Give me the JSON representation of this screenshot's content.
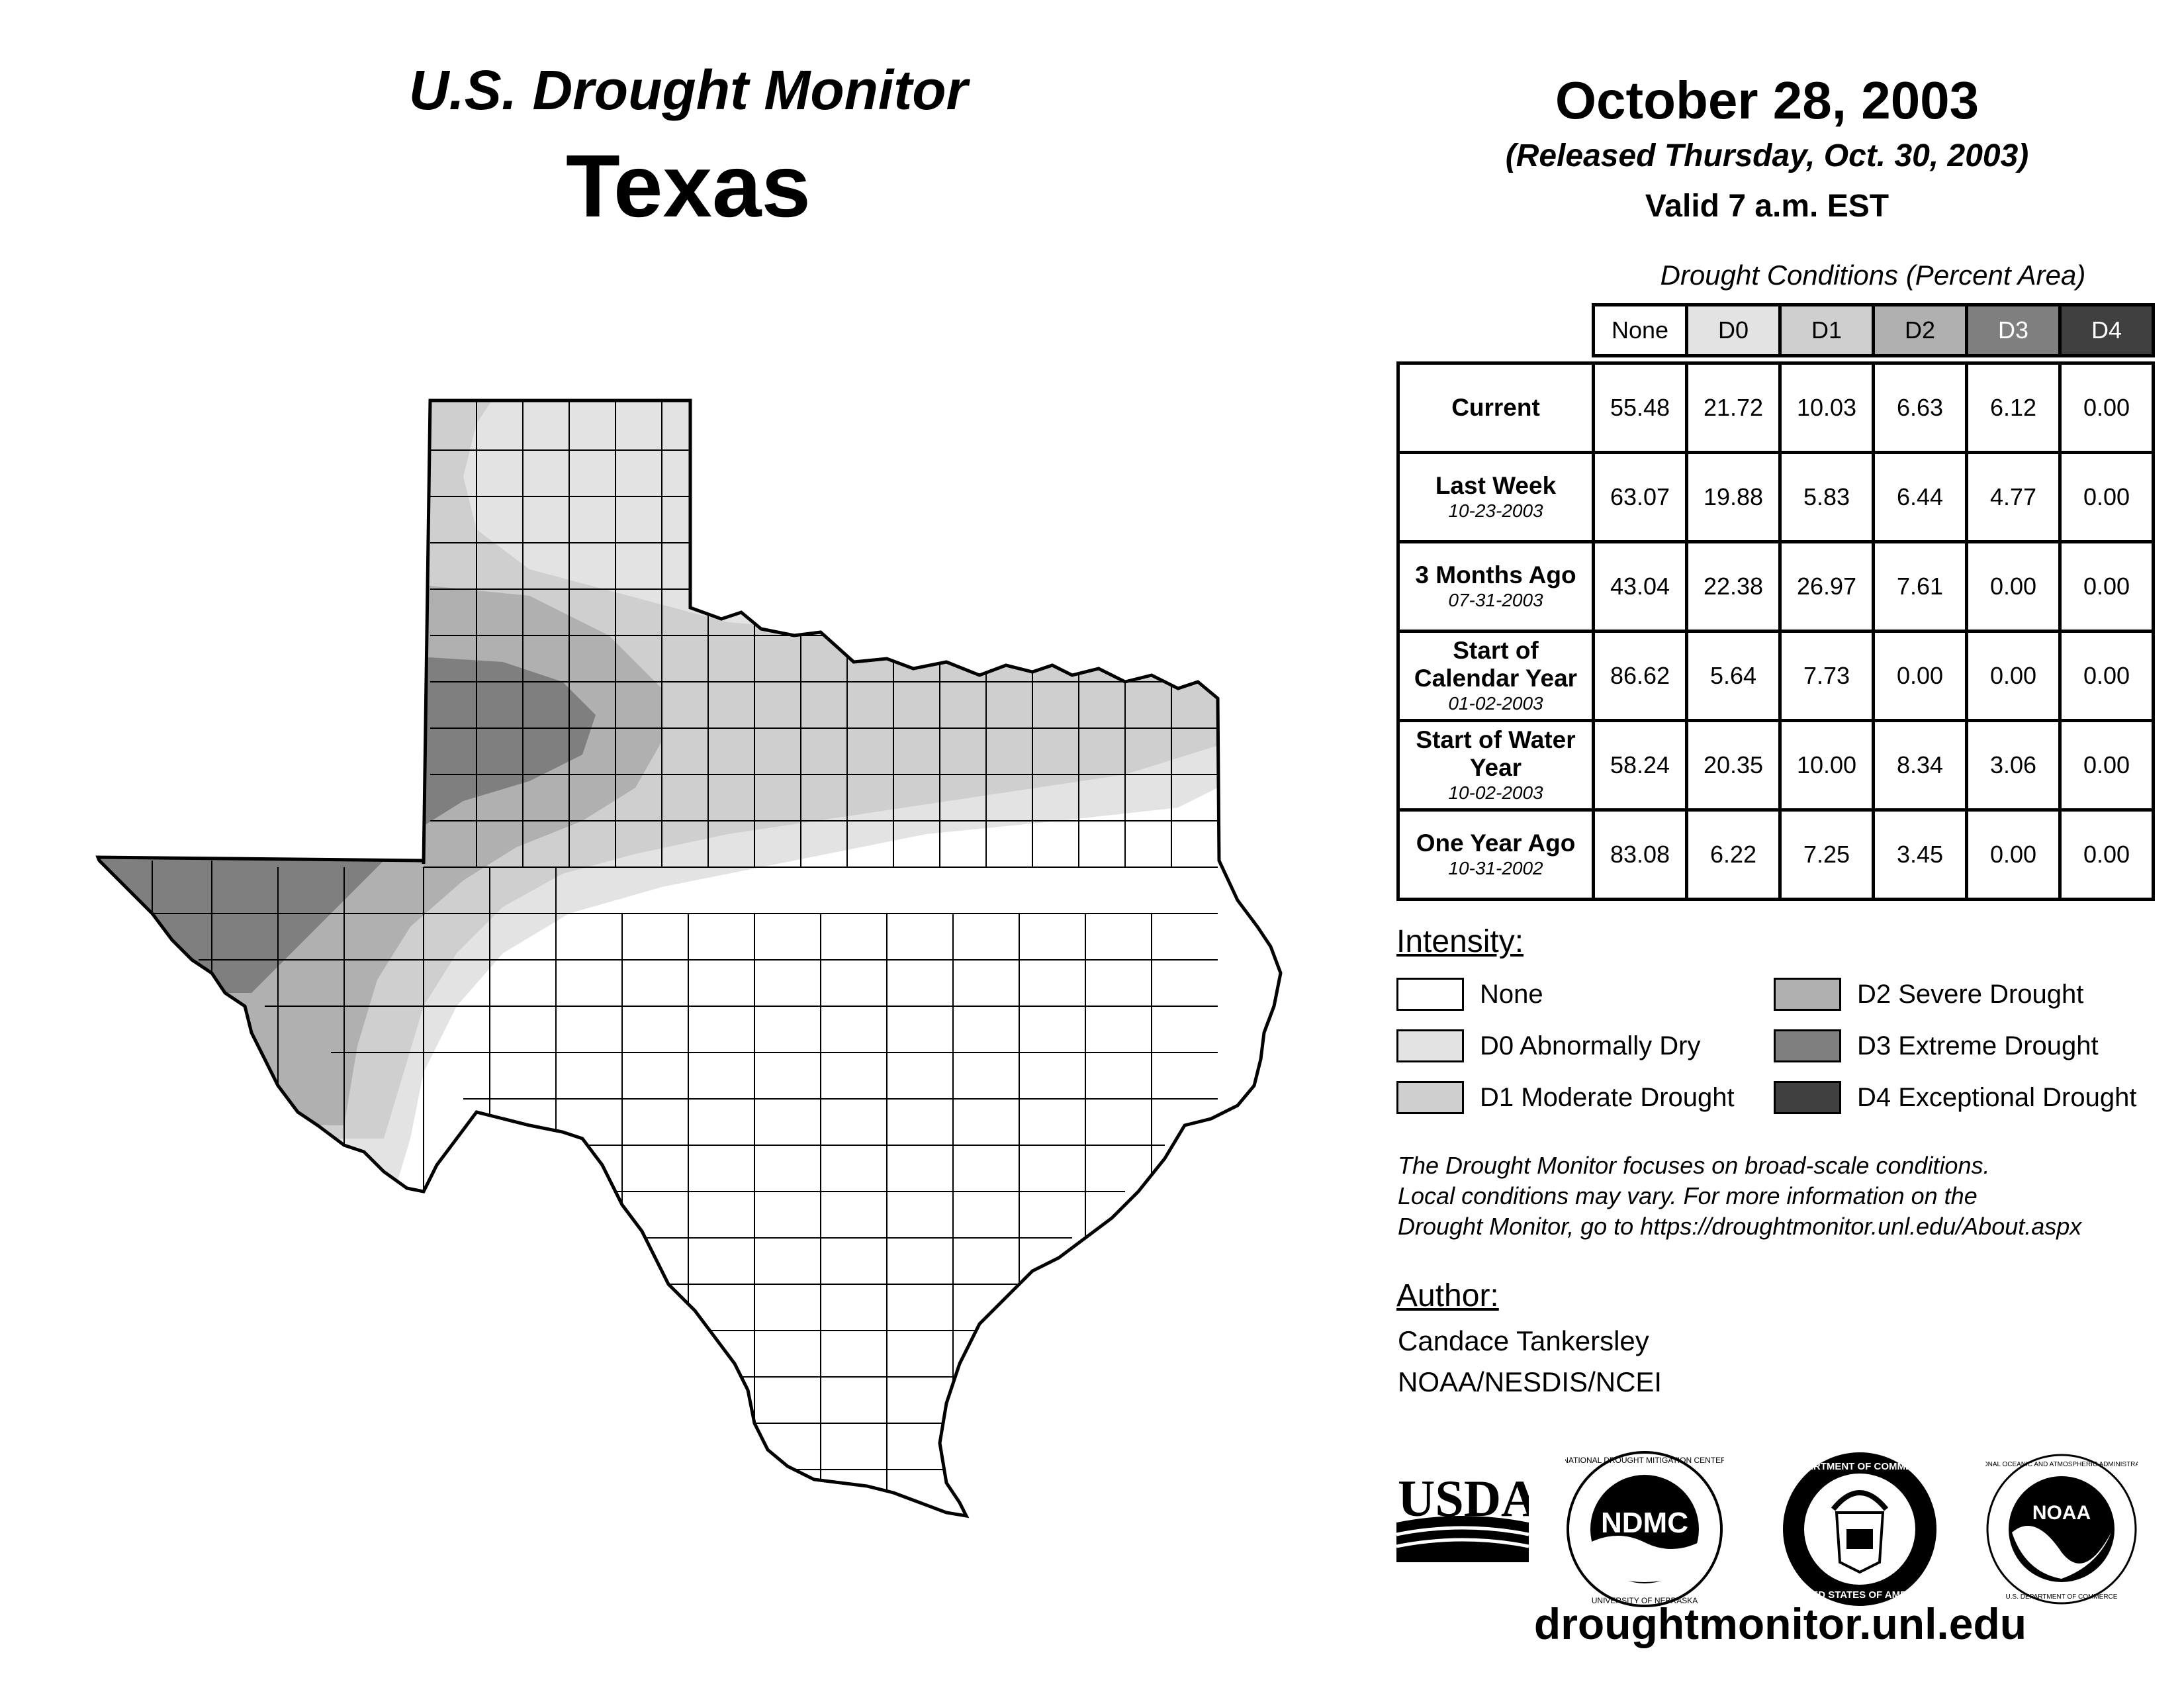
{
  "header": {
    "monitor_title": "U.S. Drought Monitor",
    "state_title": "Texas",
    "date": "October 28, 2003",
    "released": "(Released Thursday, Oct. 30, 2003)",
    "valid": "Valid 7 a.m. EST"
  },
  "table": {
    "caption": "Drought Conditions (Percent Area)",
    "columns": [
      "None",
      "D0",
      "D1",
      "D2",
      "D3",
      "D4"
    ],
    "column_colors": [
      "#ffffff",
      "#e3e3e3",
      "#cfcfcf",
      "#b0b0b0",
      "#7f7f7f",
      "#404040"
    ],
    "rows": [
      {
        "label": "Current",
        "date": "",
        "values": [
          "55.48",
          "21.72",
          "10.03",
          "6.63",
          "6.12",
          "0.00"
        ]
      },
      {
        "label": "Last Week",
        "date": "10-23-2003",
        "values": [
          "63.07",
          "19.88",
          "5.83",
          "6.44",
          "4.77",
          "0.00"
        ]
      },
      {
        "label": "3 Months Ago",
        "date": "07-31-2003",
        "values": [
          "43.04",
          "22.38",
          "26.97",
          "7.61",
          "0.00",
          "0.00"
        ]
      },
      {
        "label": "Start of Calendar Year",
        "date": "01-02-2003",
        "values": [
          "86.62",
          "5.64",
          "7.73",
          "0.00",
          "0.00",
          "0.00"
        ]
      },
      {
        "label": "Start of Water Year",
        "date": "10-02-2003",
        "values": [
          "58.24",
          "20.35",
          "10.00",
          "8.34",
          "3.06",
          "0.00"
        ]
      },
      {
        "label": "One Year Ago",
        "date": "10-31-2002",
        "values": [
          "83.08",
          "6.22",
          "7.25",
          "3.45",
          "0.00",
          "0.00"
        ]
      }
    ]
  },
  "legend": {
    "title": "Intensity:",
    "items": [
      {
        "label": "None",
        "color": "#ffffff"
      },
      {
        "label": "D0 Abnormally Dry",
        "color": "#e3e3e3"
      },
      {
        "label": "D1 Moderate Drought",
        "color": "#cfcfcf"
      },
      {
        "label": "D2 Severe Drought",
        "color": "#b0b0b0"
      },
      {
        "label": "D3 Extreme Drought",
        "color": "#7f7f7f"
      },
      {
        "label": "D4 Exceptional Drought",
        "color": "#404040"
      }
    ]
  },
  "note": {
    "line1": "The Drought Monitor focuses on broad-scale conditions.",
    "line2": "Local conditions may vary. For more information on the",
    "line3": "Drought Monitor, go to https://droughtmonitor.unl.edu/About.aspx"
  },
  "author": {
    "title": "Author:",
    "name": "Candace Tankersley",
    "org": "NOAA/NESDIS/NCEI"
  },
  "logos": {
    "usda": "USDA",
    "ndmc": "NDMC",
    "ndmc_ring": "NATIONAL DROUGHT MITIGATION CENTER",
    "ndmc_bottom": "UNIVERSITY OF NEBRASKA",
    "doc_ring_top": "DEPARTMENT OF COMMERCE",
    "doc_ring_bottom": "UNITED STATES OF AMERICA",
    "noaa": "NOAA",
    "noaa_ring": "NATIONAL OCEANIC AND ATMOSPHERIC ADMINISTRATION",
    "noaa_bottom": "U.S. DEPARTMENT OF COMMERCE"
  },
  "footer": {
    "site": "droughtmonitor.unl.edu"
  }
}
